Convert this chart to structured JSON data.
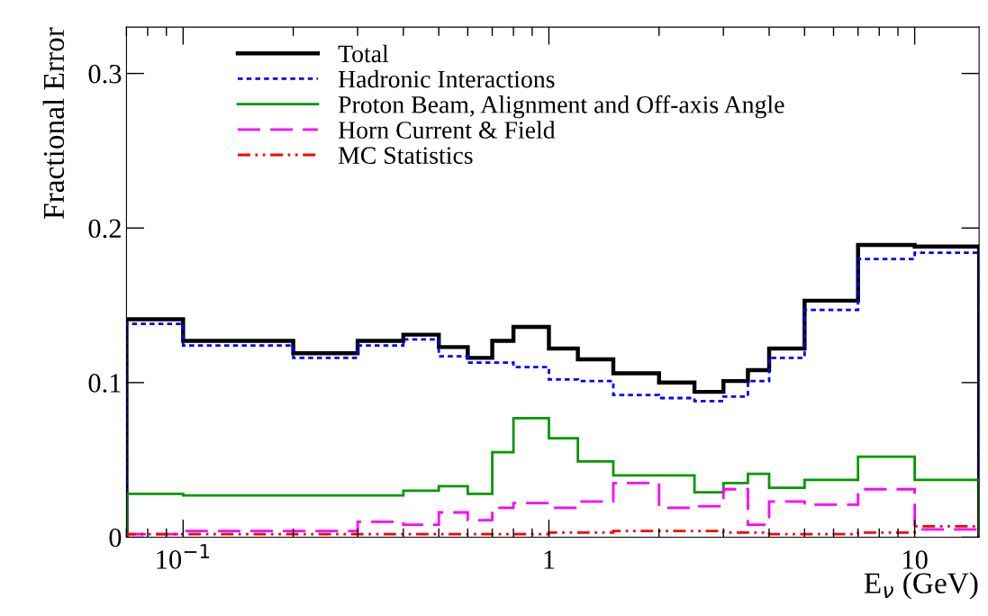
{
  "chart_data": {
    "type": "histogram",
    "xlabel": "E$_{ν}$ (GeV)",
    "ylabel": "Fractional Error",
    "log": "x",
    "bins": [
      0.07,
      0.1,
      0.2,
      0.3,
      0.4,
      0.5,
      0.6,
      0.7,
      0.8,
      1.0,
      1.2,
      1.5,
      2.0,
      2.5,
      3.0,
      3.5,
      4.0,
      5.0,
      7.0,
      10.0,
      15.0
    ],
    "series": [
      {
        "name": "Total",
        "color": "#000000",
        "line_style": "solid",
        "values": [
          0.141,
          0.127,
          0.119,
          0.127,
          0.131,
          0.123,
          0.116,
          0.127,
          0.136,
          0.122,
          0.115,
          0.106,
          0.1,
          0.094,
          0.101,
          0.108,
          0.122,
          0.153,
          0.189,
          0.188
        ]
      },
      {
        "name": "Hadronic Interactions",
        "color": "#0000ff",
        "line_style": "dotted",
        "values": [
          0.138,
          0.124,
          0.116,
          0.124,
          0.128,
          0.117,
          0.113,
          0.113,
          0.11,
          0.102,
          0.101,
          0.092,
          0.09,
          0.088,
          0.091,
          0.101,
          0.116,
          0.147,
          0.18,
          0.184
        ]
      },
      {
        "name": "Proton Beam, Alignment and Off-axis Angle",
        "color": "#009900",
        "line_style": "solid",
        "values": [
          0.028,
          0.027,
          0.027,
          0.027,
          0.03,
          0.033,
          0.028,
          0.055,
          0.077,
          0.064,
          0.049,
          0.04,
          0.04,
          0.029,
          0.035,
          0.041,
          0.032,
          0.037,
          0.052,
          0.037
        ]
      },
      {
        "name": "Horn Current & Field",
        "color": "#ff00ff",
        "line_style": "dashed",
        "values": [
          0.002,
          0.004,
          0.004,
          0.01,
          0.008,
          0.016,
          0.011,
          0.019,
          0.022,
          0.019,
          0.023,
          0.035,
          0.019,
          0.02,
          0.031,
          0.008,
          0.023,
          0.021,
          0.031,
          0.005
        ]
      },
      {
        "name": "MC Statistics",
        "color": "#ff0000",
        "line_style": "dashdot",
        "values": [
          0.002,
          0.002,
          0.002,
          0.002,
          0.002,
          0.002,
          0.002,
          0.002,
          0.002,
          0.003,
          0.003,
          0.004,
          0.004,
          0.004,
          0.003,
          0.003,
          0.002,
          0.002,
          0.003,
          0.007
        ]
      }
    ],
    "xlim": [
      0.07,
      15
    ],
    "ylim": [
      0,
      0.33
    ],
    "xticks": [
      {
        "value": 0.1,
        "label": "10$^{−1}$"
      },
      1,
      10
    ],
    "yticks": [
      0,
      0.1,
      0.2,
      0.3
    ],
    "grid": false,
    "legend": "top left"
  }
}
